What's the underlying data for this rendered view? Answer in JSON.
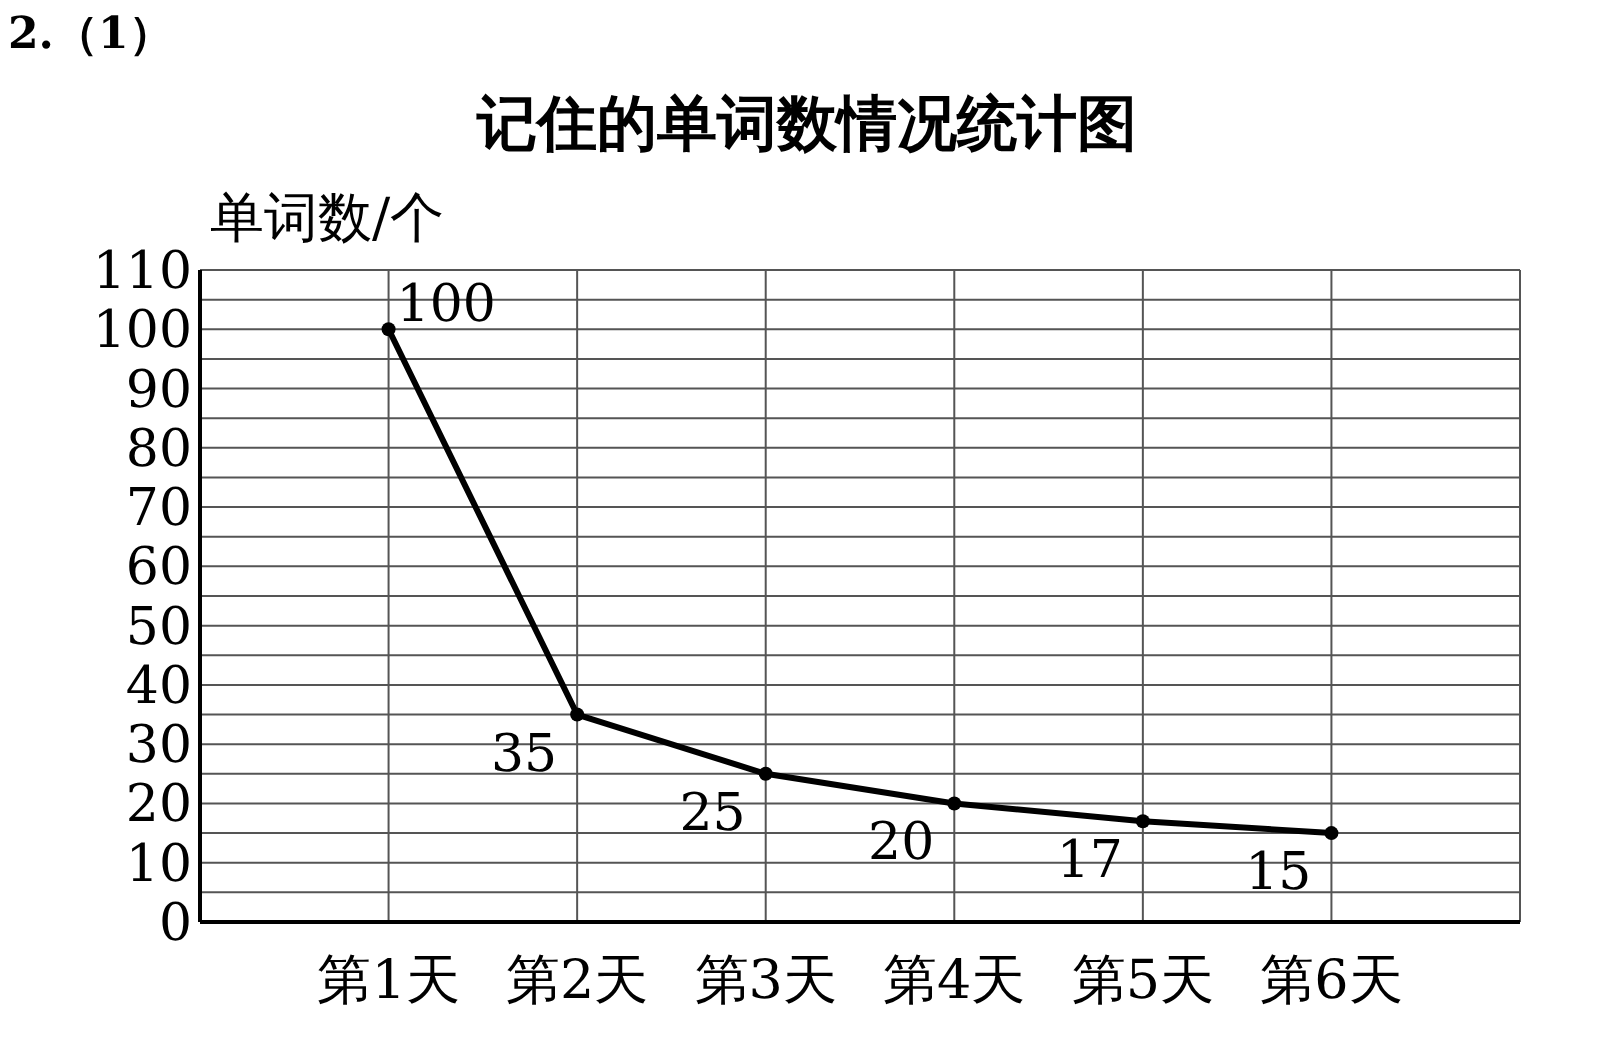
{
  "chart_data": {
    "type": "line",
    "title": "记住的单词数情况统计图",
    "ylabel": "单词数/个",
    "annotations": [
      "2.（1）"
    ],
    "categories": [
      "第1天",
      "第2天",
      "第3天",
      "第4天",
      "第5天",
      "第6天"
    ],
    "values": [
      100,
      35,
      25,
      20,
      17,
      15
    ],
    "color": "#000000",
    "ylim": [
      0,
      110
    ],
    "yticks": [
      0,
      {
        "value": 5,
        "label": null
      },
      10,
      {
        "value": 15,
        "label": null
      },
      20,
      {
        "value": 25,
        "label": null
      },
      30,
      {
        "value": 35,
        "label": null
      },
      40,
      {
        "value": 45,
        "label": null
      },
      50,
      {
        "value": 55,
        "label": null
      },
      60,
      {
        "value": 65,
        "label": null
      },
      70,
      {
        "value": 75,
        "label": null
      },
      80,
      {
        "value": 85,
        "label": null
      },
      90,
      {
        "value": 95,
        "label": null
      },
      100,
      {
        "value": 105,
        "label": null
      },
      110
    ],
    "grid": true,
    "marker": "circle",
    "line_style": "solid",
    "data_labels": true
  }
}
